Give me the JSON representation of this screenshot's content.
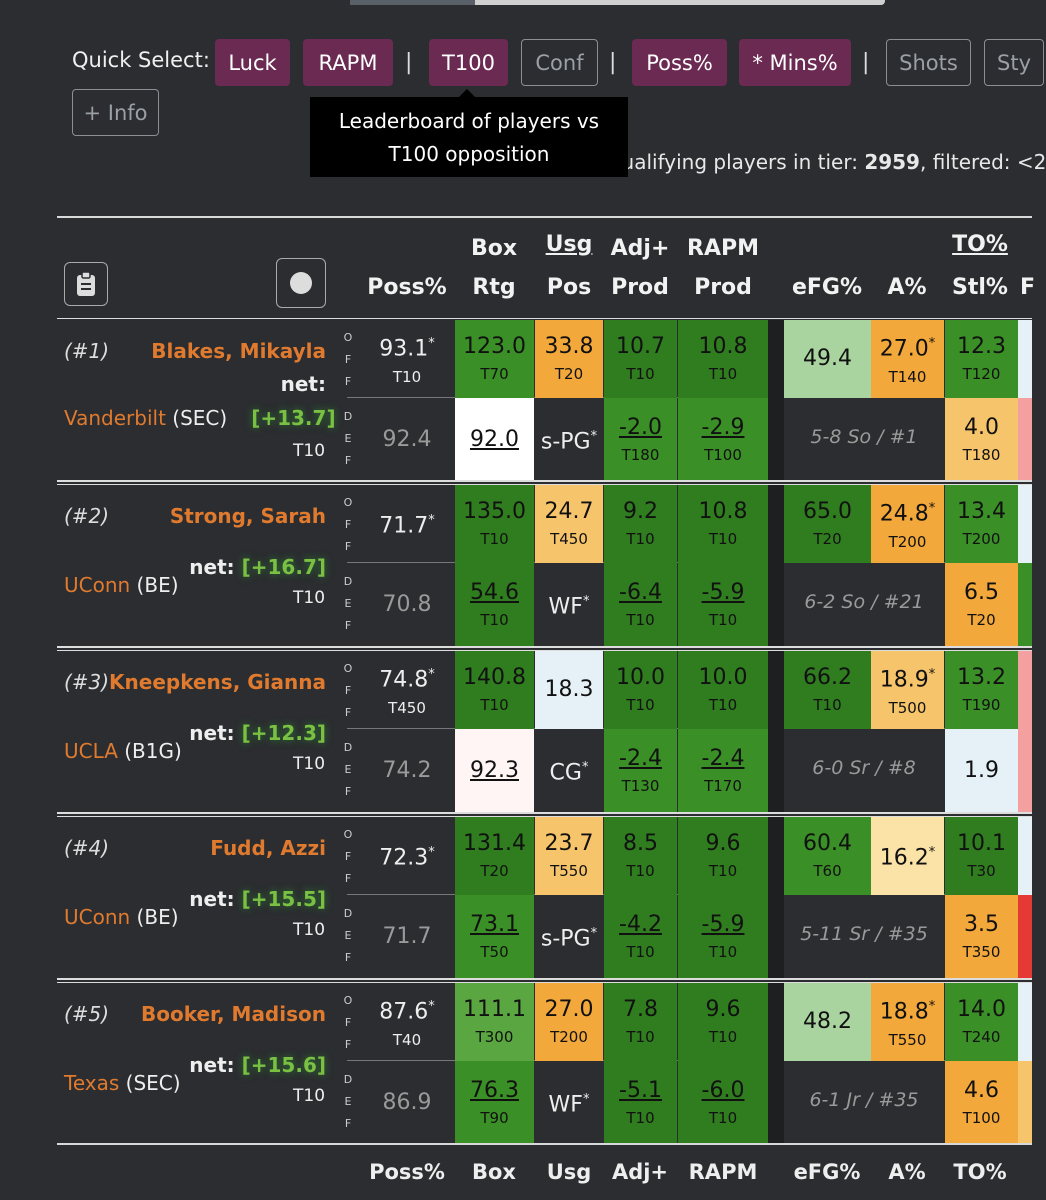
{
  "quick_select": {
    "label": "Quick Select:",
    "buttons": [
      "Luck",
      "RAPM",
      "T100",
      "Conf",
      "Poss%",
      "* Mins%",
      "Shots",
      "Sty"
    ],
    "info_button": "+ Info",
    "tooltip_line1": "Leaderboard of players vs",
    "tooltip_line2": "T100 opposition",
    "qualifying_prefix": "(Qualifying players in tier: ",
    "qualifying_count": "2959",
    "qualifying_suffix": ", filtered: <2"
  },
  "headers": {
    "poss": "Poss%",
    "box1": "Box",
    "box2": "Rtg",
    "usg1": "Usg",
    "usg2": "Pos",
    "adj1": "Adj+",
    "adj2": "Prod",
    "rapm1": "RAPM",
    "rapm2": "Prod",
    "efg": "eFG%",
    "a": "A%",
    "to1": "TO%",
    "to2": "Stl%"
  },
  "footer": {
    "poss": "Poss%",
    "box": "Box",
    "usg": "Usg",
    "adj": "Adj+",
    "rapm": "RAPM",
    "efg": "eFG%",
    "a": "A%",
    "to": "TO%"
  },
  "labels": {
    "net": "net:",
    "off": [
      "O",
      "F",
      "F"
    ],
    "def": [
      "D",
      "E",
      "F"
    ]
  },
  "players": [
    {
      "rank": "(#1)",
      "name": "Blakes, Mikayla",
      "team": "Vanderbilt",
      "conf": "(SEC)",
      "net_value": "[+13.7]",
      "net_rank": "T10",
      "off": {
        "poss": "93.1",
        "poss_rank": "T10",
        "box": "123.0",
        "box_rank": "T70",
        "usg": "33.8",
        "usg_rank": "T20",
        "adj": "10.7",
        "adj_rank": "T10",
        "rapm": "10.8",
        "rapm_rank": "T10",
        "efg": "49.4",
        "efg_rank": "",
        "a": "27.0",
        "a_rank": "T140",
        "to": "12.3",
        "to_rank": "T120"
      },
      "def": {
        "poss": "92.4",
        "box": "92.0",
        "box_rank": "",
        "pos": "s-PG",
        "adj": "-2.0",
        "adj_rank": "T180",
        "rapm": "-2.9",
        "rapm_rank": "T100",
        "bio": "5-8 So / #1",
        "stl": "4.0",
        "stl_rank": "T180"
      }
    },
    {
      "rank": "(#2)",
      "name": "Strong, Sarah",
      "team": "UConn",
      "conf": "(BE)",
      "net_value": "[+16.7]",
      "net_rank": "T10",
      "off": {
        "poss": "71.7",
        "poss_rank": "",
        "box": "135.0",
        "box_rank": "T10",
        "usg": "24.7",
        "usg_rank": "T450",
        "adj": "9.2",
        "adj_rank": "T10",
        "rapm": "10.8",
        "rapm_rank": "T10",
        "efg": "65.0",
        "efg_rank": "T20",
        "a": "24.8",
        "a_rank": "T200",
        "to": "13.4",
        "to_rank": "T200"
      },
      "def": {
        "poss": "70.8",
        "box": "54.6",
        "box_rank": "T10",
        "pos": "WF",
        "adj": "-6.4",
        "adj_rank": "T10",
        "rapm": "-5.9",
        "rapm_rank": "T10",
        "bio": "6-2 So / #21",
        "stl": "6.5",
        "stl_rank": "T20"
      }
    },
    {
      "rank": "(#3)",
      "name": "Kneepkens, Gianna",
      "team": "UCLA",
      "conf": "(B1G)",
      "net_value": "[+12.3]",
      "net_rank": "T10",
      "off": {
        "poss": "74.8",
        "poss_rank": "T450",
        "box": "140.8",
        "box_rank": "T10",
        "usg": "18.3",
        "usg_rank": "",
        "adj": "10.0",
        "adj_rank": "T10",
        "rapm": "10.0",
        "rapm_rank": "T10",
        "efg": "66.2",
        "efg_rank": "T10",
        "a": "18.9",
        "a_rank": "T500",
        "to": "13.2",
        "to_rank": "T190"
      },
      "def": {
        "poss": "74.2",
        "box": "92.3",
        "box_rank": "",
        "pos": "CG",
        "adj": "-2.4",
        "adj_rank": "T130",
        "rapm": "-2.4",
        "rapm_rank": "T170",
        "bio": "6-0 Sr / #8",
        "stl": "1.9",
        "stl_rank": ""
      }
    },
    {
      "rank": "(#4)",
      "name": "Fudd, Azzi",
      "team": "UConn",
      "conf": "(BE)",
      "net_value": "[+15.5]",
      "net_rank": "T10",
      "off": {
        "poss": "72.3",
        "poss_rank": "",
        "box": "131.4",
        "box_rank": "T20",
        "usg": "23.7",
        "usg_rank": "T550",
        "adj": "8.5",
        "adj_rank": "T10",
        "rapm": "9.6",
        "rapm_rank": "T10",
        "efg": "60.4",
        "efg_rank": "T60",
        "a": "16.2",
        "a_rank": "",
        "to": "10.1",
        "to_rank": "T30"
      },
      "def": {
        "poss": "71.7",
        "box": "73.1",
        "box_rank": "T50",
        "pos": "s-PG",
        "adj": "-4.2",
        "adj_rank": "T10",
        "rapm": "-5.9",
        "rapm_rank": "T10",
        "bio": "5-11 Sr / #35",
        "stl": "3.5",
        "stl_rank": "T350"
      }
    },
    {
      "rank": "(#5)",
      "name": "Booker, Madison",
      "team": "Texas",
      "conf": "(SEC)",
      "net_value": "[+15.6]",
      "net_rank": "T10",
      "off": {
        "poss": "87.6",
        "poss_rank": "T40",
        "box": "111.1",
        "box_rank": "T300",
        "usg": "27.0",
        "usg_rank": "T200",
        "adj": "7.8",
        "adj_rank": "T10",
        "rapm": "9.6",
        "rapm_rank": "T10",
        "efg": "48.2",
        "efg_rank": "",
        "a": "18.8",
        "a_rank": "T550",
        "to": "14.0",
        "to_rank": "T240"
      },
      "def": {
        "poss": "86.9",
        "box": "76.3",
        "box_rank": "T90",
        "pos": "WF",
        "adj": "-5.1",
        "adj_rank": "T10",
        "rapm": "-6.0",
        "rapm_rank": "T10",
        "bio": "6-1 Jr / #35",
        "stl": "4.6",
        "stl_rank": "T100"
      }
    }
  ],
  "colors": {
    "green_dark": "#2f7d1f",
    "green_mid": "#3a8f26",
    "green_light": "#5aa640",
    "green_pale": "#a9d4a0",
    "orange": "#f2a83a",
    "orange_light": "#f6c46b",
    "cream": "#fbe3a8",
    "pale_blue": "#e6f1f7",
    "white": "#ffffff",
    "pink_white": "#fff5f5",
    "red": "#e53935",
    "pink": "#f4a0a0",
    "dark": "#2b2d30"
  }
}
